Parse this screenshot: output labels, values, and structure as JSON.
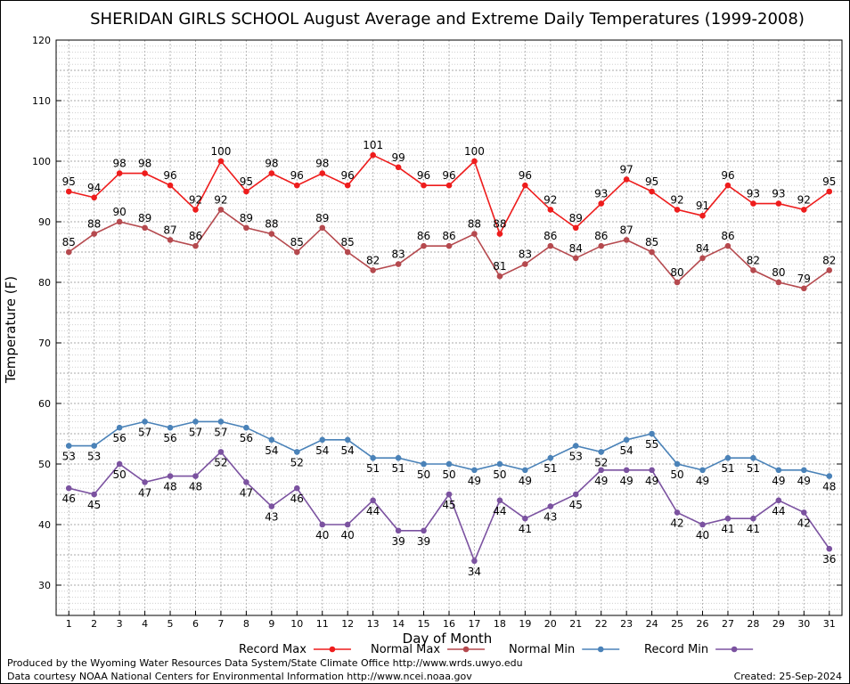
{
  "chart_data": {
    "type": "line",
    "title": "SHERIDAN GIRLS SCHOOL August Average and Extreme Daily Temperatures (1999-2008)",
    "xlabel": "Day of Month",
    "ylabel": "Temperature (F)",
    "ylim": [
      25,
      120
    ],
    "yticks": [
      30,
      40,
      50,
      60,
      70,
      80,
      90,
      100,
      110,
      120
    ],
    "x": [
      1,
      2,
      3,
      4,
      5,
      6,
      7,
      8,
      9,
      10,
      11,
      12,
      13,
      14,
      15,
      16,
      17,
      18,
      19,
      20,
      21,
      22,
      23,
      24,
      25,
      26,
      27,
      28,
      29,
      30,
      31
    ],
    "grid": true,
    "legend_position": "bottom",
    "series": [
      {
        "name": "Record Max",
        "color": "#ee1c1c",
        "label_pos": "above",
        "values": [
          95,
          94,
          98,
          98,
          96,
          92,
          100,
          95,
          98,
          96,
          98,
          96,
          101,
          99,
          96,
          96,
          100,
          88,
          96,
          92,
          89,
          93,
          97,
          95,
          92,
          91,
          96,
          93,
          93,
          92,
          95
        ]
      },
      {
        "name": "Normal Max",
        "color": "#b5494e",
        "label_pos": "above",
        "values": [
          85,
          88,
          90,
          89,
          87,
          86,
          92,
          89,
          88,
          85,
          89,
          85,
          82,
          83,
          86,
          86,
          88,
          81,
          83,
          86,
          84,
          86,
          87,
          85,
          80,
          84,
          86,
          82,
          80,
          79,
          82
        ]
      },
      {
        "name": "Normal Min",
        "color": "#4a82b8",
        "label_pos": "below",
        "values": [
          53,
          53,
          56,
          57,
          56,
          57,
          57,
          56,
          54,
          52,
          54,
          54,
          51,
          51,
          50,
          50,
          49,
          50,
          49,
          51,
          53,
          52,
          54,
          55,
          50,
          49,
          51,
          51,
          49,
          49,
          48
        ]
      },
      {
        "name": "Record Min",
        "color": "#7b52a0",
        "label_pos": "below",
        "values": [
          46,
          45,
          50,
          47,
          48,
          48,
          52,
          47,
          43,
          46,
          40,
          40,
          44,
          39,
          39,
          45,
          34,
          44,
          41,
          43,
          45,
          49,
          49,
          49,
          42,
          40,
          41,
          41,
          44,
          42,
          36
        ]
      }
    ]
  },
  "footer": {
    "produced_by": "Produced by the Wyoming Water Resources Data System/State Climate Office http://www.wrds.uwyo.edu",
    "courtesy": "Data courtesy NOAA National Centers for Environmental Information http://www.ncei.noaa.gov",
    "created": "Created:  25-Sep-2024"
  }
}
